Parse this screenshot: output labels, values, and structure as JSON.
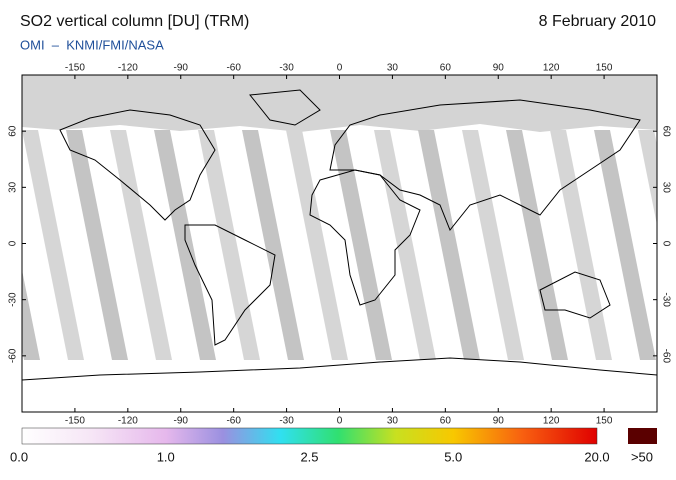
{
  "header": {
    "title": "SO2 vertical column [DU] (TRM)",
    "date": "8 February 2010",
    "subtitle": "OMI  –  KNMI/FMI/NASA"
  },
  "map": {
    "lon_ticks": [
      -150,
      -120,
      -90,
      -60,
      -30,
      0,
      30,
      60,
      90,
      120,
      150
    ],
    "lat_ticks": [
      60,
      30,
      0,
      -30,
      -60
    ]
  },
  "colorbar": {
    "labels": [
      "0.0",
      "1.0",
      "2.5",
      "5.0",
      "20.0"
    ],
    "overflow_label": ">50"
  }
}
